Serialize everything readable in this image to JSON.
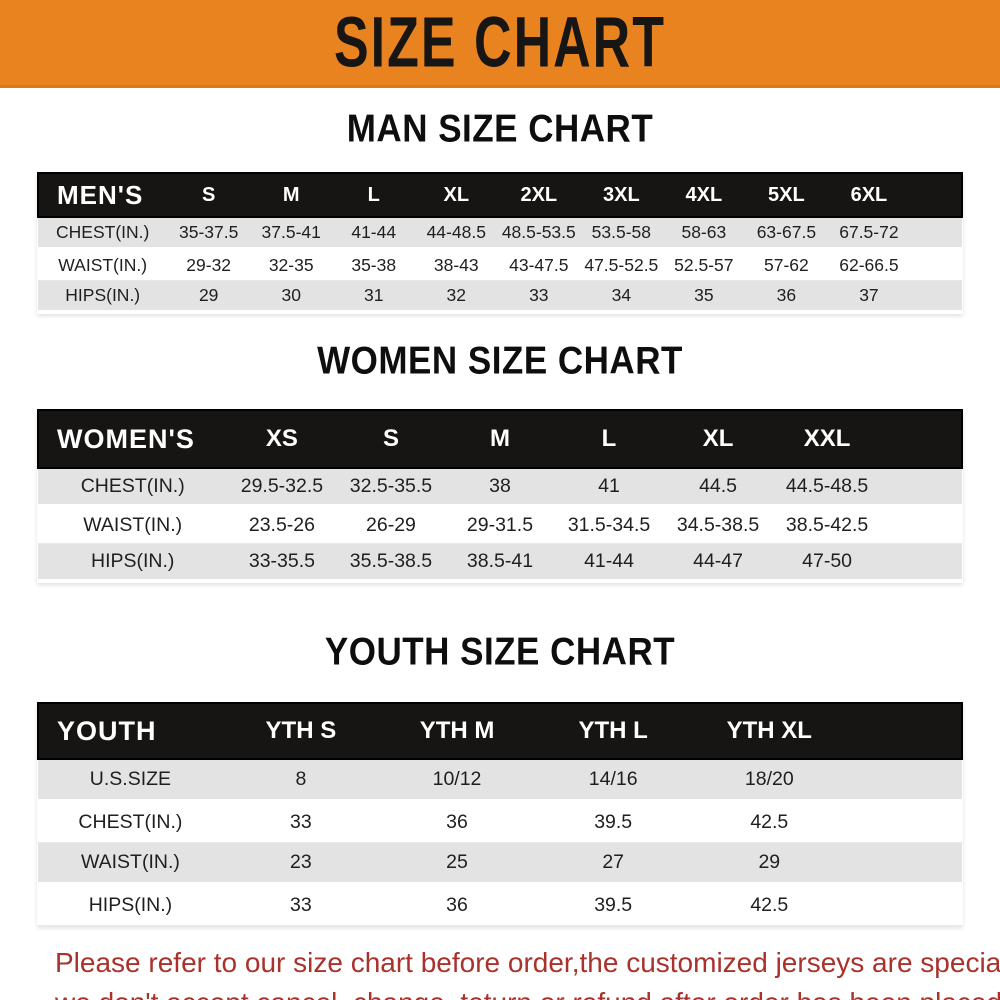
{
  "banner": {
    "title": "SIZE CHART",
    "bg_color": "#E8831F",
    "text_color": "#181614"
  },
  "sections": [
    {
      "id": "men",
      "heading": "MAN SIZE CHART",
      "group_label": "MEN'S",
      "columns": [
        "S",
        "M",
        "L",
        "XL",
        "2XL",
        "3XL",
        "4XL",
        "5XL",
        "6XL"
      ],
      "rows": [
        {
          "label": "CHEST(IN.)",
          "values": [
            "35-37.5",
            "37.5-41",
            "41-44",
            "44-48.5",
            "48.5-53.5",
            "53.5-58",
            "58-63",
            "63-67.5",
            "67.5-72"
          ]
        },
        {
          "label": "WAIST(IN.)",
          "values": [
            "29-32",
            "32-35",
            "35-38",
            "38-43",
            "43-47.5",
            "47.5-52.5",
            "52.5-57",
            "57-62",
            "62-66.5"
          ]
        },
        {
          "label": "HIPS(IN.)",
          "values": [
            "29",
            "30",
            "31",
            "32",
            "33",
            "34",
            "35",
            "36",
            "37"
          ]
        }
      ]
    },
    {
      "id": "women",
      "heading": "WOMEN SIZE CHART",
      "group_label": "WOMEN'S",
      "columns": [
        "XS",
        "S",
        "M",
        "L",
        "XL",
        "XXL"
      ],
      "rows": [
        {
          "label": "CHEST(IN.)",
          "values": [
            "29.5-32.5",
            "32.5-35.5",
            "38",
            "41",
            "44.5",
            "44.5-48.5"
          ]
        },
        {
          "label": "WAIST(IN.)",
          "values": [
            "23.5-26",
            "26-29",
            "29-31.5",
            "31.5-34.5",
            "34.5-38.5",
            "38.5-42.5"
          ]
        },
        {
          "label": "HIPS(IN.)",
          "values": [
            "33-35.5",
            "35.5-38.5",
            "38.5-41",
            "41-44",
            "44-47",
            "47-50"
          ]
        }
      ]
    },
    {
      "id": "youth",
      "heading": "YOUTH SIZE CHART",
      "group_label": "YOUTH",
      "columns": [
        "YTH S",
        "YTH M",
        "YTH L",
        "YTH XL"
      ],
      "rows": [
        {
          "label": "U.S.SIZE",
          "values": [
            "8",
            "10/12",
            "14/16",
            "18/20"
          ]
        },
        {
          "label": "CHEST(IN.)",
          "values": [
            "33",
            "36",
            "39.5",
            "42.5"
          ]
        },
        {
          "label": "WAIST(IN.)",
          "values": [
            "23",
            "25",
            "27",
            "29"
          ]
        },
        {
          "label": "HIPS(IN.)",
          "values": [
            "33",
            "36",
            "39.5",
            "42.5"
          ]
        }
      ]
    }
  ],
  "footer": {
    "line1": "Please refer to our size chart before order,the customized jerseys are special products,",
    "line2": "we don't accept cancel, change, teturn or refund after order has been placed!",
    "text_color": "#A9322C"
  },
  "colors": {
    "banner_orange": "#E8831F",
    "table_header_black": "#171513",
    "row_gray": "#E3E3E3",
    "notice_red": "#A9322C"
  }
}
